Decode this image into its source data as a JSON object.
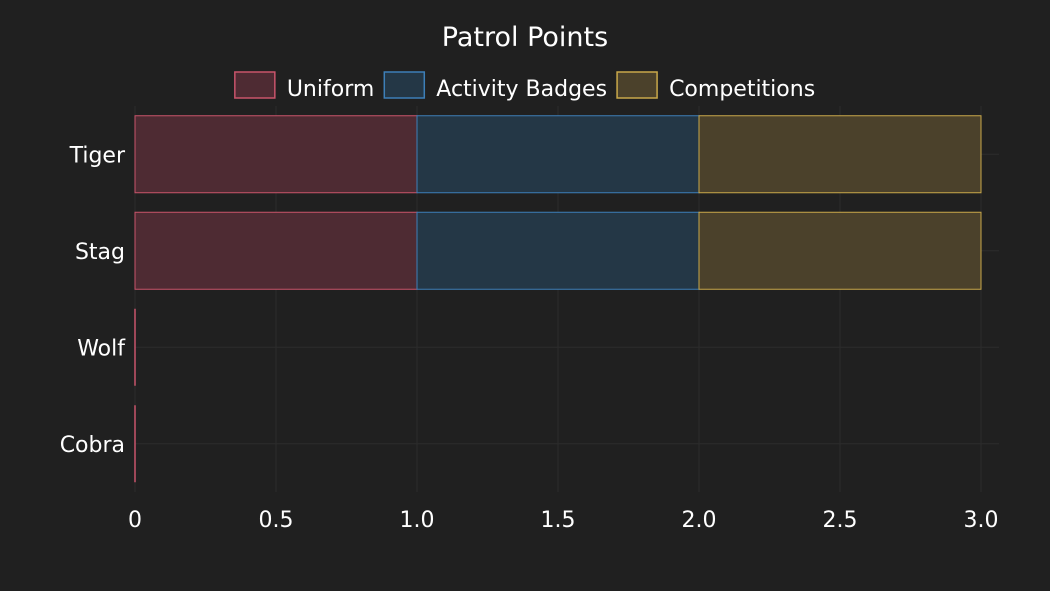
{
  "chart_data": {
    "type": "bar",
    "orientation": "horizontal",
    "barmode": "stack",
    "title": "Patrol Points",
    "categories": [
      "Tiger",
      "Stag",
      "Wolf",
      "Cobra"
    ],
    "series": [
      {
        "name": "Uniform",
        "values": [
          1,
          1,
          0,
          0
        ],
        "color": "#c9546b",
        "fill": "#4e2b33"
      },
      {
        "name": "Activity Badges",
        "values": [
          1,
          1,
          0,
          0
        ],
        "color": "#3d7fb8",
        "fill": "#243746"
      },
      {
        "name": "Competitions",
        "values": [
          1,
          1,
          0,
          0
        ],
        "color": "#c9a84a",
        "fill": "#4b412b"
      }
    ],
    "xlim": [
      0,
      3
    ],
    "x_ticks": [
      {
        "value": 0,
        "label": "0"
      },
      {
        "value": 0.5,
        "label": "0.5"
      },
      {
        "value": 1,
        "label": "1.0"
      },
      {
        "value": 1.5,
        "label": "1.5"
      },
      {
        "value": 2,
        "label": "2.0"
      },
      {
        "value": 2.5,
        "label": "2.5"
      },
      {
        "value": 3,
        "label": "3.0"
      }
    ],
    "legend": "top-center",
    "grid": true
  }
}
